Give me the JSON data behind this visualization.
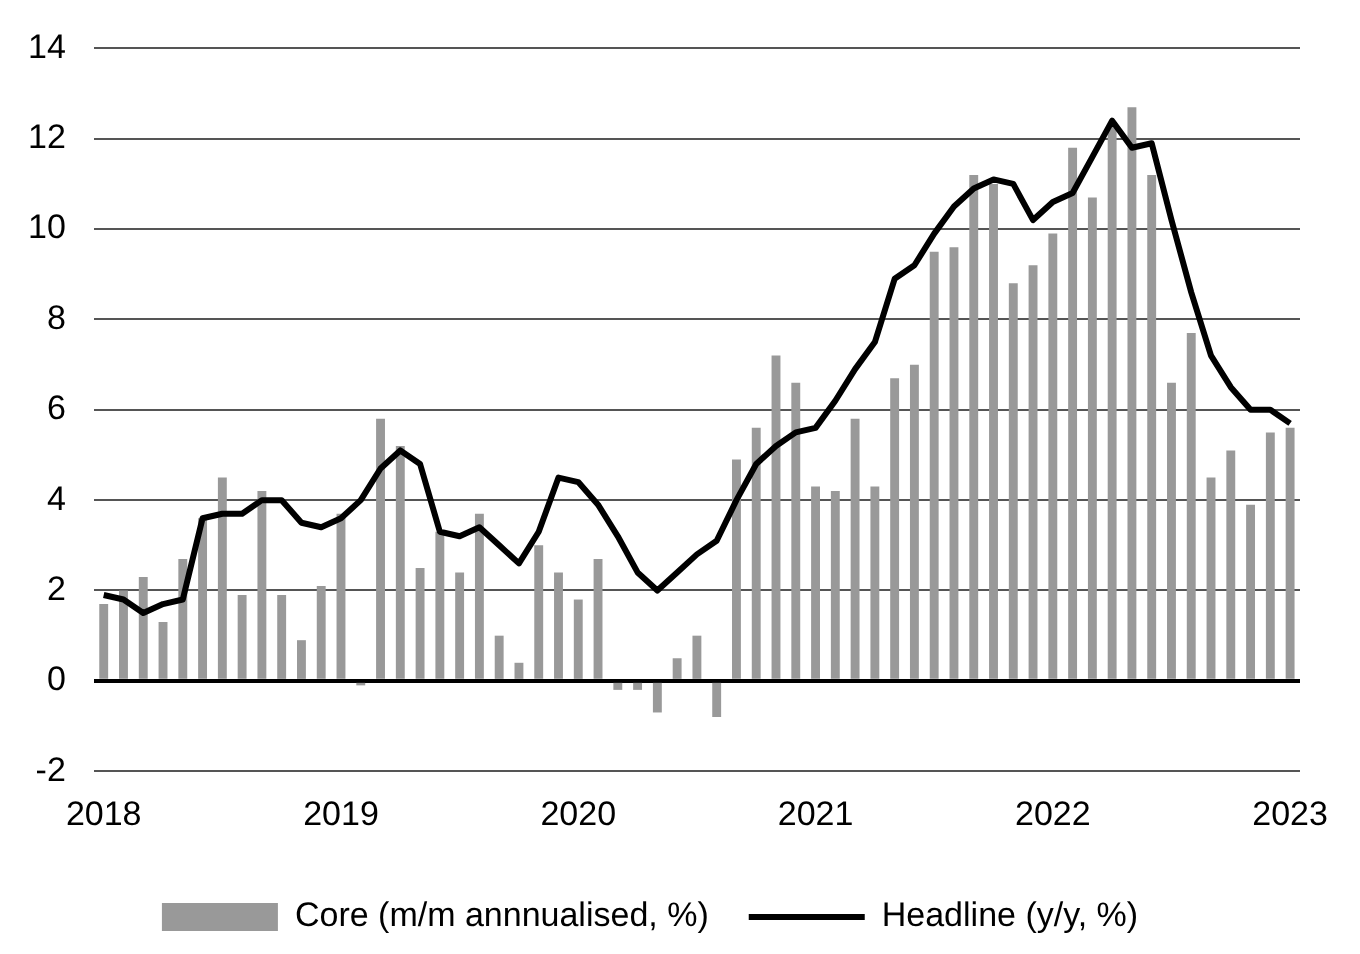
{
  "chart_data": {
    "type": "bar",
    "categories": [
      "2018",
      null,
      null,
      null,
      null,
      null,
      null,
      null,
      null,
      null,
      null,
      null,
      "2019",
      null,
      null,
      null,
      null,
      null,
      null,
      null,
      null,
      null,
      null,
      null,
      "2020",
      null,
      null,
      null,
      null,
      null,
      null,
      null,
      null,
      null,
      null,
      null,
      "2021",
      null,
      null,
      null,
      null,
      null,
      null,
      null,
      null,
      null,
      null,
      null,
      "2022",
      null,
      null,
      null,
      null,
      null,
      null,
      null,
      null,
      null,
      null,
      null,
      "2023"
    ],
    "series": [
      {
        "name": "Core (m/m annnualised, %)",
        "color": "#999999",
        "values": [
          1.7,
          2.0,
          2.3,
          1.3,
          2.7,
          3.6,
          4.5,
          1.9,
          4.2,
          1.9,
          0.9,
          2.1,
          3.7,
          -0.1,
          5.8,
          5.2,
          2.5,
          3.3,
          2.4,
          3.7,
          1.0,
          0.4,
          3.0,
          2.4,
          1.8,
          2.7,
          -0.2,
          -0.2,
          -0.7,
          0.5,
          1.0,
          -0.8,
          4.9,
          5.6,
          7.2,
          6.6,
          4.3,
          4.2,
          5.8,
          4.3,
          6.7,
          7.0,
          9.5,
          9.6,
          11.2,
          11.0,
          8.8,
          9.2,
          9.9,
          11.8,
          10.7,
          12.3,
          12.7,
          11.2,
          6.6,
          7.7,
          4.5,
          5.1,
          3.9,
          5.5,
          5.6
        ]
      },
      {
        "name": "Headline (y/y, %)",
        "type": "line",
        "color": "#000000",
        "values": [
          1.9,
          1.8,
          1.5,
          1.7,
          1.8,
          3.6,
          3.7,
          3.7,
          4.0,
          4.0,
          3.5,
          3.4,
          3.6,
          4.0,
          4.7,
          5.1,
          4.8,
          3.3,
          3.2,
          3.4,
          3.0,
          2.6,
          3.3,
          4.5,
          4.4,
          3.9,
          3.2,
          2.4,
          2.0,
          2.4,
          2.8,
          3.1,
          4.0,
          4.8,
          5.2,
          5.5,
          5.6,
          6.2,
          6.9,
          7.5,
          8.9,
          9.2,
          9.9,
          10.5,
          10.9,
          11.1,
          11.0,
          10.2,
          10.6,
          10.8,
          11.6,
          12.4,
          11.8,
          11.9,
          10.2,
          8.6,
          7.2,
          6.5,
          6.0,
          6.0,
          5.7
        ]
      }
    ],
    "ylim": [
      -2,
      14
    ],
    "yticks": [
      -2,
      0,
      2,
      4,
      6,
      8,
      10,
      12,
      14
    ],
    "grid": "y",
    "legend": "bottom"
  }
}
